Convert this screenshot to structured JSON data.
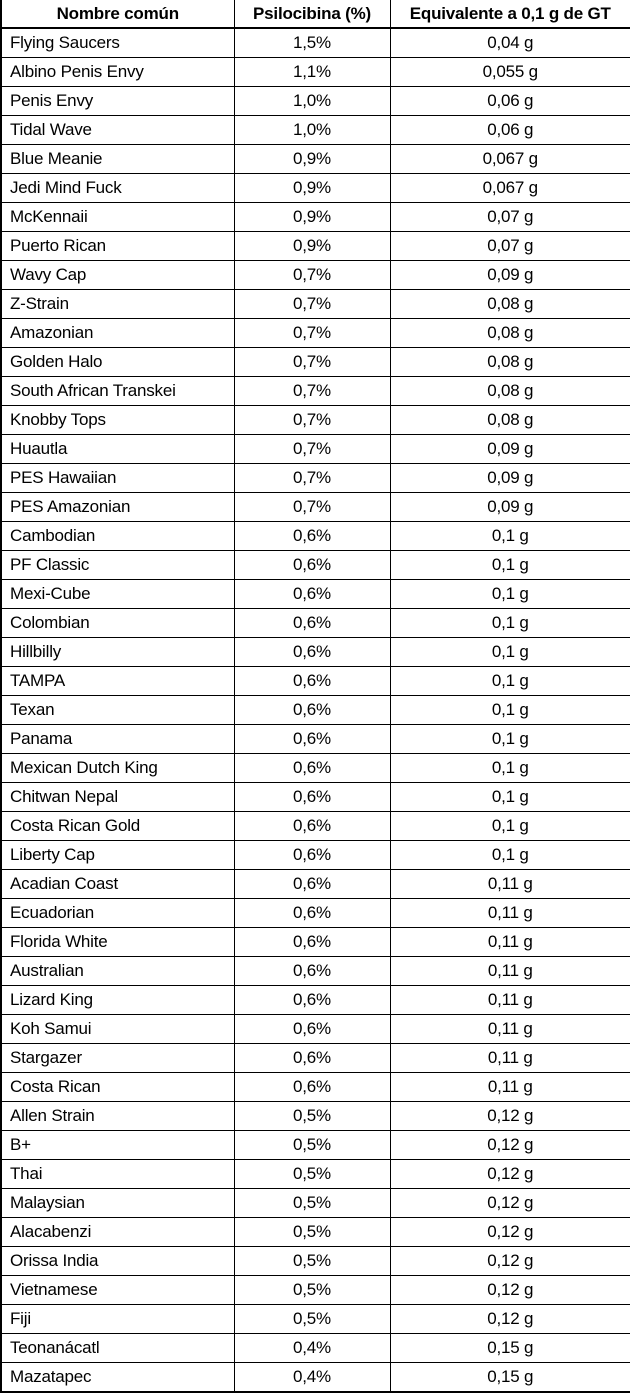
{
  "table": {
    "columns": [
      {
        "label": "Nombre común"
      },
      {
        "label": "Psilocibina (%)"
      },
      {
        "label": "Equivalente a 0,1 g de GT"
      }
    ],
    "rows": [
      {
        "name": "Flying Saucers",
        "psilocybin": "1,5%",
        "equivalent": "0,04 g"
      },
      {
        "name": "Albino Penis Envy",
        "psilocybin": "1,1%",
        "equivalent": "0,055 g"
      },
      {
        "name": "Penis Envy",
        "psilocybin": "1,0%",
        "equivalent": "0,06 g"
      },
      {
        "name": "Tidal Wave",
        "psilocybin": "1,0%",
        "equivalent": "0,06 g"
      },
      {
        "name": "Blue Meanie",
        "psilocybin": "0,9%",
        "equivalent": "0,067 g"
      },
      {
        "name": "Jedi Mind Fuck",
        "psilocybin": "0,9%",
        "equivalent": "0,067 g"
      },
      {
        "name": "McKennaii",
        "psilocybin": "0,9%",
        "equivalent": "0,07 g"
      },
      {
        "name": "Puerto Rican",
        "psilocybin": "0,9%",
        "equivalent": "0,07 g"
      },
      {
        "name": "Wavy Cap",
        "psilocybin": "0,7%",
        "equivalent": "0,09 g"
      },
      {
        "name": "Z-Strain",
        "psilocybin": "0,7%",
        "equivalent": "0,08 g"
      },
      {
        "name": "Amazonian",
        "psilocybin": "0,7%",
        "equivalent": "0,08 g"
      },
      {
        "name": "Golden Halo",
        "psilocybin": "0,7%",
        "equivalent": "0,08 g"
      },
      {
        "name": "South African Transkei",
        "psilocybin": "0,7%",
        "equivalent": "0,08 g"
      },
      {
        "name": "Knobby Tops",
        "psilocybin": "0,7%",
        "equivalent": "0,08 g"
      },
      {
        "name": "Huautla",
        "psilocybin": "0,7%",
        "equivalent": "0,09 g"
      },
      {
        "name": "PES Hawaiian",
        "psilocybin": "0,7%",
        "equivalent": "0,09 g"
      },
      {
        "name": "PES Amazonian",
        "psilocybin": "0,7%",
        "equivalent": "0,09 g"
      },
      {
        "name": "Cambodian",
        "psilocybin": "0,6%",
        "equivalent": "0,1 g"
      },
      {
        "name": "PF Classic",
        "psilocybin": "0,6%",
        "equivalent": "0,1 g"
      },
      {
        "name": "Mexi-Cube",
        "psilocybin": "0,6%",
        "equivalent": "0,1 g"
      },
      {
        "name": "Colombian",
        "psilocybin": "0,6%",
        "equivalent": "0,1 g"
      },
      {
        "name": "Hillbilly",
        "psilocybin": "0,6%",
        "equivalent": "0,1 g"
      },
      {
        "name": "TAMPA",
        "psilocybin": "0,6%",
        "equivalent": "0,1 g"
      },
      {
        "name": "Texan",
        "psilocybin": "0,6%",
        "equivalent": "0,1 g"
      },
      {
        "name": "Panama",
        "psilocybin": "0,6%",
        "equivalent": "0,1 g"
      },
      {
        "name": "Mexican Dutch King",
        "psilocybin": "0,6%",
        "equivalent": "0,1 g"
      },
      {
        "name": "Chitwan Nepal",
        "psilocybin": "0,6%",
        "equivalent": "0,1 g"
      },
      {
        "name": "Costa Rican Gold",
        "psilocybin": "0,6%",
        "equivalent": "0,1 g"
      },
      {
        "name": "Liberty Cap",
        "psilocybin": "0,6%",
        "equivalent": "0,1 g"
      },
      {
        "name": "Acadian Coast",
        "psilocybin": "0,6%",
        "equivalent": "0,11 g"
      },
      {
        "name": "Ecuadorian",
        "psilocybin": "0,6%",
        "equivalent": "0,11 g"
      },
      {
        "name": "Florida White",
        "psilocybin": "0,6%",
        "equivalent": "0,11 g"
      },
      {
        "name": "Australian",
        "psilocybin": "0,6%",
        "equivalent": "0,11 g"
      },
      {
        "name": "Lizard King",
        "psilocybin": "0,6%",
        "equivalent": "0,11 g"
      },
      {
        "name": "Koh Samui",
        "psilocybin": "0,6%",
        "equivalent": "0,11 g"
      },
      {
        "name": "Stargazer",
        "psilocybin": "0,6%",
        "equivalent": "0,11 g"
      },
      {
        "name": "Costa Rican",
        "psilocybin": "0,6%",
        "equivalent": "0,11 g"
      },
      {
        "name": "Allen Strain",
        "psilocybin": "0,5%",
        "equivalent": "0,12 g"
      },
      {
        "name": "B+",
        "psilocybin": "0,5%",
        "equivalent": "0,12 g"
      },
      {
        "name": "Thai",
        "psilocybin": "0,5%",
        "equivalent": "0,12 g"
      },
      {
        "name": "Malaysian",
        "psilocybin": "0,5%",
        "equivalent": "0,12 g"
      },
      {
        "name": "Alacabenzi",
        "psilocybin": "0,5%",
        "equivalent": "0,12 g"
      },
      {
        "name": "Orissa India",
        "psilocybin": "0,5%",
        "equivalent": "0,12 g"
      },
      {
        "name": "Vietnamese",
        "psilocybin": "0,5%",
        "equivalent": "0,12 g"
      },
      {
        "name": "Fiji",
        "psilocybin": "0,5%",
        "equivalent": "0,12 g"
      },
      {
        "name": "Teonanácatl",
        "psilocybin": "0,4%",
        "equivalent": "0,15 g"
      },
      {
        "name": "Mazatapec",
        "psilocybin": "0,4%",
        "equivalent": "0,15 g"
      }
    ]
  }
}
